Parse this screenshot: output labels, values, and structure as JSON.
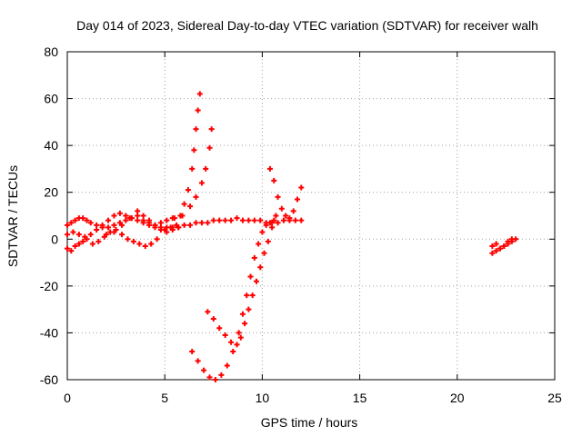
{
  "chart_data": {
    "type": "scatter",
    "title": "Day 014 of 2023, Sidereal Day-to-day VTEC variation (SDTVAR) for receiver walh",
    "xlabel": "GPS time / hours",
    "ylabel": "SDTVAR / TECUs",
    "xlim": [
      0,
      25
    ],
    "ylim": [
      -60,
      80
    ],
    "xticks": [
      0,
      5,
      10,
      15,
      20,
      25
    ],
    "yticks": [
      -60,
      -40,
      -20,
      0,
      20,
      40,
      60,
      80
    ],
    "grid": true,
    "marker": "+",
    "color": "#ff0000",
    "series": [
      {
        "x": [
          0.0,
          0.2,
          0.4,
          0.6,
          0.8,
          1.0,
          1.2,
          1.5,
          1.8,
          2.1,
          2.4,
          2.7,
          3.0,
          3.3,
          3.6,
          3.9,
          4.2,
          4.5,
          4.8,
          5.1,
          5.4,
          5.7,
          6.0,
          6.3,
          6.6,
          6.9,
          7.2,
          7.5,
          7.8,
          8.1,
          8.4,
          8.7,
          9.0,
          9.3,
          9.6,
          9.9,
          10.2,
          10.5,
          10.8,
          11.1,
          11.4,
          11.7,
          12.0
        ],
        "y": [
          6,
          7,
          8,
          9,
          9,
          8,
          7,
          6,
          5,
          5,
          6,
          7,
          8,
          9,
          10,
          8,
          6,
          5,
          4,
          3,
          4,
          5,
          6,
          6,
          7,
          7,
          7,
          8,
          8,
          8,
          8,
          9,
          8,
          8,
          8,
          8,
          7,
          7,
          7,
          8,
          8,
          8,
          8
        ]
      },
      {
        "x": [
          0.0,
          0.2,
          0.4,
          0.6,
          0.8,
          1.0,
          1.3,
          1.6,
          1.9,
          2.2,
          2.5,
          2.8,
          3.1,
          3.4,
          3.7,
          4.0,
          4.3,
          4.6
        ],
        "y": [
          -4,
          -5,
          -3,
          -2,
          -1,
          0,
          -2,
          -1,
          1,
          3,
          4,
          2,
          0,
          -1,
          -2,
          -3,
          -2,
          0
        ]
      },
      {
        "x": [
          0.0,
          0.3,
          0.6,
          0.9,
          1.2,
          1.5,
          1.8,
          2.1,
          2.4,
          2.7,
          3.0,
          3.3,
          3.6,
          3.9,
          4.2,
          4.5,
          4.8,
          5.1,
          5.4,
          5.7
        ],
        "y": [
          2,
          3,
          2,
          1,
          2,
          4,
          6,
          8,
          10,
          11,
          10,
          9,
          8,
          7,
          7,
          6,
          5,
          5,
          5,
          5
        ]
      },
      {
        "x": [
          2.0,
          2.4,
          2.8,
          3.2,
          3.6,
          3.9,
          4.2,
          4.5,
          4.8,
          5.1,
          5.4
        ],
        "y": [
          2,
          3,
          6,
          9,
          12,
          10,
          8,
          6,
          7,
          8,
          9
        ]
      },
      {
        "x": [
          5.0,
          5.3,
          5.6,
          5.8,
          6.0,
          6.2,
          6.4,
          6.5,
          6.6,
          6.7,
          6.8
        ],
        "y": [
          4,
          5,
          6,
          10,
          15,
          21,
          30,
          38,
          47,
          55,
          62
        ]
      },
      {
        "x": [
          5.5,
          5.9,
          6.3,
          6.6,
          6.9,
          7.1,
          7.3,
          7.4
        ],
        "y": [
          9,
          10,
          14,
          18,
          24,
          30,
          39,
          47
        ]
      },
      {
        "x": [
          6.4,
          6.7,
          7.0,
          7.3,
          7.6,
          7.9,
          8.2,
          8.5,
          8.8,
          9.0,
          9.2,
          9.4,
          9.6,
          9.8,
          10.0,
          10.2,
          10.4,
          10.6
        ],
        "y": [
          -48,
          -52,
          -56,
          -59,
          -60,
          -58,
          -54,
          -48,
          -40,
          -32,
          -24,
          -16,
          -8,
          -2,
          3,
          6,
          7,
          8
        ]
      },
      {
        "x": [
          7.2,
          7.5,
          7.8,
          8.1,
          8.4,
          8.7,
          8.9,
          9.1,
          9.3,
          9.5,
          9.7,
          9.9,
          10.1,
          10.3,
          10.5,
          10.7
        ],
        "y": [
          -31,
          -34,
          -38,
          -41,
          -44,
          -45,
          -42,
          -36,
          -30,
          -24,
          -18,
          -12,
          -6,
          -1,
          5,
          10
        ]
      },
      {
        "x": [
          10.4,
          10.6,
          10.8,
          11.0,
          11.2,
          11.4,
          11.6,
          11.8,
          12.0
        ],
        "y": [
          30,
          25,
          18,
          13,
          10,
          9,
          12,
          17,
          22
        ]
      },
      {
        "x": [
          21.8,
          22.0,
          22.2,
          22.4,
          22.6,
          22.8,
          23.0
        ],
        "y": [
          -6,
          -5,
          -4,
          -3,
          -2,
          -1,
          0
        ]
      },
      {
        "x": [
          21.8,
          22.0,
          22.2,
          22.4,
          22.6,
          22.8
        ],
        "y": [
          -3,
          -2,
          -4,
          -3,
          -1,
          0
        ]
      }
    ]
  }
}
